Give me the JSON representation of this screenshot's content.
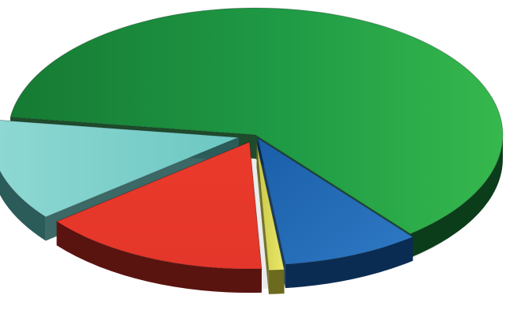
{
  "chart_data": {
    "type": "pie",
    "style": "3d-exploded",
    "title": "",
    "legend": "none",
    "data_labels": "none",
    "slices": [
      {
        "value": 62,
        "color": "#1f9a45"
      },
      {
        "value": 9,
        "color": "#1f66b3"
      },
      {
        "value": 1,
        "color": "#e5e25a"
      },
      {
        "value": 15,
        "color": "#e8392c"
      },
      {
        "value": 13,
        "color": "#7fd0cc"
      }
    ]
  }
}
